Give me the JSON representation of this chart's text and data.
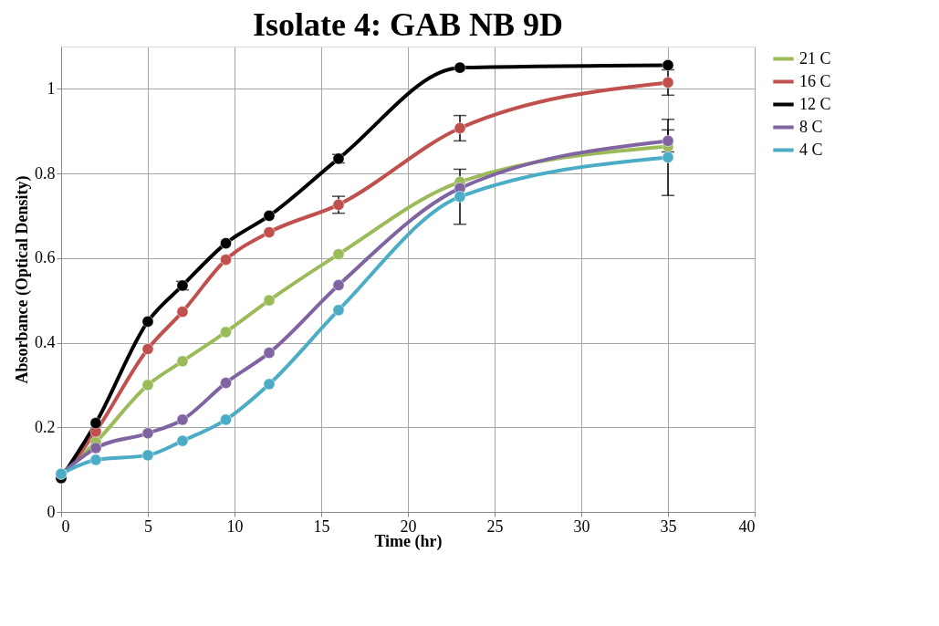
{
  "chart_data": {
    "type": "line",
    "title": "Isolate 4: GAB NB 9D",
    "xlabel": "Time (hr)",
    "ylabel": "Absorbance (Optical Density)",
    "x": [
      0,
      2,
      5,
      7,
      9.5,
      12,
      16,
      23,
      35
    ],
    "series": [
      {
        "name": "21 C",
        "color": "#9bbb59",
        "values": [
          0.09,
          0.165,
          0.3,
          0.356,
          0.425,
          0.5,
          0.609,
          0.78,
          0.864
        ]
      },
      {
        "name": "16 C",
        "color": "#c0504d",
        "values": [
          0.08,
          0.19,
          0.385,
          0.473,
          0.596,
          0.661,
          0.726,
          0.907,
          1.015
        ],
        "errors": [
          null,
          null,
          null,
          null,
          null,
          null,
          0.02,
          0.03,
          0.03
        ]
      },
      {
        "name": "12 C",
        "color": "#000000",
        "values": [
          0.08,
          0.21,
          0.45,
          0.535,
          0.635,
          0.7,
          0.835,
          1.05,
          1.056
        ],
        "errors": [
          null,
          null,
          null,
          0.01,
          null,
          null,
          0.01,
          null,
          null
        ]
      },
      {
        "name": "8 C",
        "color": "#8064a2",
        "values": [
          0.09,
          0.151,
          0.186,
          0.218,
          0.305,
          0.376,
          0.536,
          0.765,
          0.877
        ],
        "errors": [
          null,
          null,
          null,
          null,
          null,
          null,
          null,
          null,
          0.026
        ]
      },
      {
        "name": "4 C",
        "color": "#4bacc6",
        "values": [
          0.09,
          0.123,
          0.134,
          0.168,
          0.218,
          0.302,
          0.477,
          0.745,
          0.838
        ],
        "errors": [
          null,
          null,
          null,
          null,
          null,
          null,
          null,
          0.065,
          0.09
        ]
      }
    ],
    "xlim": [
      0,
      40
    ],
    "xticks": [
      0,
      5,
      10,
      15,
      20,
      25,
      30,
      35,
      40
    ],
    "ylim": [
      0,
      1.1
    ],
    "yticks": [
      0,
      0.2,
      0.4,
      0.6,
      0.8,
      1
    ],
    "grid": true,
    "legend": "right",
    "marker": "circle",
    "line_style": "solid"
  }
}
